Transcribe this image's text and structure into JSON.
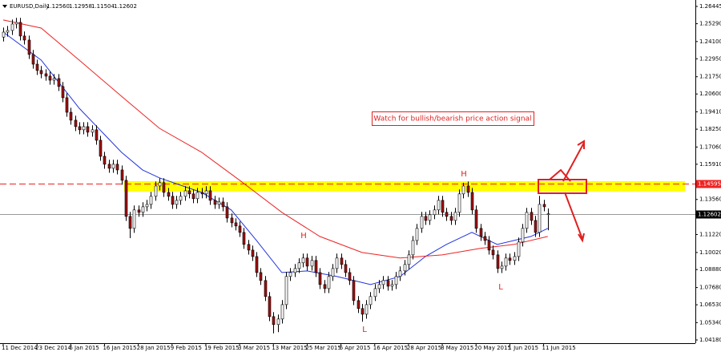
{
  "chart_data": {
    "type": "candlestick",
    "header": {
      "symbol": "EURUSD,Daily",
      "ohlc_labels": [
        "1.12560",
        "1.12958",
        "1.11504",
        "1.12602"
      ]
    },
    "categories": [
      "11 Dec 2014",
      null,
      null,
      null,
      null,
      null,
      null,
      null,
      "23 Dec 2014",
      null,
      null,
      null,
      null,
      null,
      null,
      null,
      "6 Jan 2015",
      null,
      null,
      null,
      null,
      null,
      null,
      null,
      "16 Jan 2015",
      null,
      null,
      null,
      null,
      null,
      null,
      null,
      "28 Jan 2015",
      null,
      null,
      null,
      null,
      null,
      null,
      null,
      "9 Feb 2015",
      null,
      null,
      null,
      null,
      null,
      null,
      null,
      "19 Feb 2015",
      null,
      null,
      null,
      null,
      null,
      null,
      null,
      "3 Mar 2015",
      null,
      null,
      null,
      null,
      null,
      null,
      null,
      "13 Mar 2015",
      null,
      null,
      null,
      null,
      null,
      null,
      null,
      "25 Mar 2015",
      null,
      null,
      null,
      null,
      null,
      null,
      null,
      "6 Apr 2015",
      null,
      null,
      null,
      null,
      null,
      null,
      null,
      "16 Apr 2015",
      null,
      null,
      null,
      null,
      null,
      null,
      null,
      "28 Apr 2015",
      null,
      null,
      null,
      null,
      null,
      null,
      null,
      "8 May 2015",
      null,
      null,
      null,
      null,
      null,
      null,
      null,
      "20 May 2015",
      null,
      null,
      null,
      null,
      null,
      null,
      null,
      "1 Jun 2015",
      null,
      null,
      null,
      null,
      null,
      null,
      null,
      "11 Jun 2015",
      null
    ],
    "candles": [
      [
        1.244,
        1.2503,
        1.241,
        1.2473
      ],
      [
        1.2473,
        1.2514,
        1.2443,
        1.2484
      ],
      [
        1.2484,
        1.2557,
        1.2454,
        1.2527
      ],
      [
        1.2527,
        1.2568,
        1.2497,
        1.2538
      ],
      [
        1.2538,
        1.2568,
        1.2417,
        1.2447
      ],
      [
        1.2447,
        1.2477,
        1.239,
        1.242
      ],
      [
        1.242,
        1.245,
        1.2294,
        1.2324
      ],
      [
        1.2324,
        1.2354,
        1.2229,
        1.2259
      ],
      [
        1.2259,
        1.2289,
        1.2187,
        1.2217
      ],
      [
        1.2217,
        1.2247,
        1.2165,
        1.2195
      ],
      [
        1.2195,
        1.2225,
        1.2149,
        1.2179
      ],
      [
        1.2179,
        1.2209,
        1.2122,
        1.2152
      ],
      [
        1.2152,
        1.2193,
        1.2122,
        1.2163
      ],
      [
        1.2163,
        1.2193,
        1.208,
        1.211
      ],
      [
        1.211,
        1.214,
        1.2005,
        1.2035
      ],
      [
        1.2035,
        1.2065,
        1.1908,
        1.1938
      ],
      [
        1.1938,
        1.1968,
        1.1855,
        1.1885
      ],
      [
        1.1885,
        1.1915,
        1.1812,
        1.1842
      ],
      [
        1.1842,
        1.1872,
        1.1791,
        1.1821
      ],
      [
        1.1821,
        1.1872,
        1.1791,
        1.1842
      ],
      [
        1.1842,
        1.1872,
        1.1775,
        1.1805
      ],
      [
        1.1805,
        1.1851,
        1.1775,
        1.1821
      ],
      [
        1.1821,
        1.1851,
        1.1721,
        1.1751
      ],
      [
        1.1751,
        1.1781,
        1.1614,
        1.1644
      ],
      [
        1.1644,
        1.1674,
        1.1561,
        1.1591
      ],
      [
        1.1591,
        1.1621,
        1.1534,
        1.1564
      ],
      [
        1.1564,
        1.1621,
        1.1534,
        1.1591
      ],
      [
        1.1591,
        1.1621,
        1.1523,
        1.1553
      ],
      [
        1.1553,
        1.1583,
        1.1454,
        1.1484
      ],
      [
        1.1484,
        1.1514,
        1.1213,
        1.1243
      ],
      [
        1.1243,
        1.1273,
        1.1098,
        1.1163
      ],
      [
        1.1163,
        1.1316,
        1.1133,
        1.1286
      ],
      [
        1.1286,
        1.1316,
        1.124,
        1.127
      ],
      [
        1.127,
        1.1337,
        1.124,
        1.1307
      ],
      [
        1.1307,
        1.1353,
        1.1277,
        1.1323
      ],
      [
        1.1323,
        1.1407,
        1.1293,
        1.1377
      ],
      [
        1.1377,
        1.1476,
        1.1347,
        1.1446
      ],
      [
        1.1446,
        1.1498,
        1.1416,
        1.1468
      ],
      [
        1.1468,
        1.1498,
        1.1373,
        1.1403
      ],
      [
        1.1403,
        1.1433,
        1.1347,
        1.1377
      ],
      [
        1.1377,
        1.1407,
        1.1293,
        1.1323
      ],
      [
        1.1323,
        1.138,
        1.1293,
        1.135
      ],
      [
        1.135,
        1.1407,
        1.132,
        1.1377
      ],
      [
        1.1377,
        1.1444,
        1.1347,
        1.1414
      ],
      [
        1.1414,
        1.1444,
        1.1363,
        1.1393
      ],
      [
        1.1393,
        1.1423,
        1.1331,
        1.1361
      ],
      [
        1.1361,
        1.1433,
        1.1331,
        1.1403
      ],
      [
        1.1403,
        1.1433,
        1.1363,
        1.1393
      ],
      [
        1.1393,
        1.1444,
        1.1363,
        1.1414
      ],
      [
        1.1414,
        1.1444,
        1.132,
        1.135
      ],
      [
        1.135,
        1.138,
        1.1293,
        1.1323
      ],
      [
        1.1323,
        1.1369,
        1.1293,
        1.1339
      ],
      [
        1.1339,
        1.1369,
        1.1277,
        1.1307
      ],
      [
        1.1307,
        1.1337,
        1.1202,
        1.1232
      ],
      [
        1.1232,
        1.1262,
        1.117,
        1.12
      ],
      [
        1.12,
        1.123,
        1.1149,
        1.1179
      ],
      [
        1.1179,
        1.1209,
        1.1106,
        1.1136
      ],
      [
        1.1136,
        1.1166,
        1.1026,
        1.1056
      ],
      [
        1.1056,
        1.1086,
        1.0988,
        1.1018
      ],
      [
        1.1018,
        1.1048,
        1.0945,
        1.0975
      ],
      [
        1.0975,
        1.1005,
        1.0838,
        1.0868
      ],
      [
        1.0868,
        1.0898,
        1.0785,
        1.0815
      ],
      [
        1.0815,
        1.0845,
        1.0678,
        1.0708
      ],
      [
        1.0708,
        1.0738,
        1.0544,
        1.0574
      ],
      [
        1.0574,
        1.0604,
        1.0462,
        1.0521
      ],
      [
        1.0521,
        1.0588,
        1.047,
        1.0558
      ],
      [
        1.0558,
        1.0684,
        1.0528,
        1.0654
      ],
      [
        1.0654,
        1.0872,
        1.0624,
        1.0842
      ],
      [
        1.0842,
        1.0898,
        1.0812,
        1.0868
      ],
      [
        1.0868,
        1.0925,
        1.0838,
        1.0895
      ],
      [
        1.0895,
        1.0963,
        1.0865,
        1.0933
      ],
      [
        1.0933,
        1.0995,
        1.0903,
        1.0965
      ],
      [
        1.0965,
        1.0995,
        1.0881,
        1.0911
      ],
      [
        1.0911,
        1.0979,
        1.0881,
        1.0949
      ],
      [
        1.0949,
        1.0979,
        1.0838,
        1.0868
      ],
      [
        1.0868,
        1.0898,
        1.0758,
        1.0788
      ],
      [
        1.0788,
        1.0818,
        1.0731,
        1.0761
      ],
      [
        1.0761,
        1.0872,
        1.0731,
        1.0842
      ],
      [
        1.0842,
        1.0925,
        1.0812,
        1.0895
      ],
      [
        1.0895,
        1.0995,
        1.0865,
        1.0965
      ],
      [
        1.0965,
        1.0995,
        1.0892,
        1.0922
      ],
      [
        1.0922,
        1.0952,
        1.0838,
        1.0868
      ],
      [
        1.0868,
        1.0898,
        1.0785,
        1.0815
      ],
      [
        1.0815,
        1.0845,
        1.0651,
        1.0681
      ],
      [
        1.0681,
        1.0711,
        1.0598,
        1.0628
      ],
      [
        1.0628,
        1.0658,
        1.054,
        1.059
      ],
      [
        1.059,
        1.0684,
        1.056,
        1.0654
      ],
      [
        1.0654,
        1.0738,
        1.0624,
        1.0708
      ],
      [
        1.0708,
        1.0791,
        1.0678,
        1.0761
      ],
      [
        1.0761,
        1.0818,
        1.0731,
        1.0788
      ],
      [
        1.0788,
        1.0845,
        1.0758,
        1.0815
      ],
      [
        1.0815,
        1.0845,
        1.0747,
        1.0777
      ],
      [
        1.0777,
        1.0818,
        1.0747,
        1.0788
      ],
      [
        1.0788,
        1.0872,
        1.0758,
        1.0842
      ],
      [
        1.0842,
        1.0909,
        1.0812,
        1.0879
      ],
      [
        1.0879,
        1.0952,
        1.0849,
        1.0922
      ],
      [
        1.0922,
        1.1016,
        1.0892,
        1.0986
      ],
      [
        1.0986,
        1.1112,
        1.0956,
        1.1082
      ],
      [
        1.1082,
        1.1193,
        1.1052,
        1.1163
      ],
      [
        1.1163,
        1.1273,
        1.1133,
        1.1243
      ],
      [
        1.1243,
        1.1273,
        1.1186,
        1.1216
      ],
      [
        1.1216,
        1.1284,
        1.1186,
        1.1254
      ],
      [
        1.1254,
        1.1316,
        1.1224,
        1.1286
      ],
      [
        1.1286,
        1.138,
        1.1256,
        1.135
      ],
      [
        1.135,
        1.138,
        1.124,
        1.127
      ],
      [
        1.127,
        1.13,
        1.1213,
        1.1243
      ],
      [
        1.1243,
        1.1273,
        1.1186,
        1.1216
      ],
      [
        1.1216,
        1.13,
        1.1186,
        1.127
      ],
      [
        1.127,
        1.1423,
        1.124,
        1.1393
      ],
      [
        1.1393,
        1.1467,
        1.1363,
        1.1446
      ],
      [
        1.1446,
        1.1476,
        1.1373,
        1.1403
      ],
      [
        1.1403,
        1.1433,
        1.1256,
        1.1286
      ],
      [
        1.1286,
        1.1316,
        1.1133,
        1.1163
      ],
      [
        1.1163,
        1.1193,
        1.1079,
        1.1109
      ],
      [
        1.1109,
        1.1139,
        1.1052,
        1.1082
      ],
      [
        1.1082,
        1.1112,
        1.0988,
        1.1018
      ],
      [
        1.1018,
        1.1048,
        1.0956,
        1.0986
      ],
      [
        1.0986,
        1.1016,
        1.0865,
        1.0895
      ],
      [
        1.0895,
        1.0941,
        1.0865,
        1.0911
      ],
      [
        1.0911,
        1.0995,
        1.0881,
        1.0965
      ],
      [
        1.0965,
        1.0995,
        1.0919,
        1.0949
      ],
      [
        1.0949,
        1.1005,
        1.0919,
        1.0975
      ],
      [
        1.0975,
        1.1102,
        1.0945,
        1.1072
      ],
      [
        1.1072,
        1.1193,
        1.1042,
        1.1163
      ],
      [
        1.1163,
        1.13,
        1.1133,
        1.127
      ],
      [
        1.127,
        1.13,
        1.1186,
        1.1216
      ],
      [
        1.1216,
        1.1246,
        1.1106,
        1.1136
      ],
      [
        1.1136,
        1.138,
        1.1106,
        1.1323
      ],
      [
        1.1323,
        1.1353,
        1.1277,
        1.1307
      ],
      [
        1.1256,
        1.12958,
        1.11504,
        1.12602
      ]
    ],
    "bull_color": "#ffffff",
    "bear_color": "#a01010",
    "series": [
      {
        "type": "line",
        "color": "#2233dd",
        "x": [
          0,
          9,
          18,
          28,
          33,
          37,
          47,
          54,
          60,
          66,
          72,
          79,
          87,
          94,
          100,
          105,
          111,
          117,
          121,
          125,
          129
        ],
        "values": [
          1.2473,
          1.2286,
          1.1965,
          1.1671,
          1.1553,
          1.15,
          1.1403,
          1.1286,
          1.1082,
          1.0868,
          1.0879,
          1.0842,
          1.0788,
          1.0842,
          1.0975,
          1.1056,
          1.1136,
          1.1056,
          1.1082,
          1.1109,
          1.1163
        ]
      },
      {
        "type": "line",
        "color": "#ee2222",
        "x": [
          0,
          9,
          18,
          28,
          37,
          47,
          56,
          66,
          75,
          85,
          94,
          104,
          113,
          121,
          129
        ],
        "values": [
          1.2554,
          1.25,
          1.2286,
          1.2045,
          1.1831,
          1.1671,
          1.1484,
          1.127,
          1.1109,
          1.1002,
          1.0965,
          1.0986,
          1.1029,
          1.1056,
          1.1109
        ]
      }
    ],
    "ylim": [
      1.03966,
      1.26873
    ],
    "yticks": [
      1.26445,
      {
        "value": 1.2529,
        "label": "1.25290"
      },
      {
        "value": 1.241,
        "label": "1.24100"
      },
      {
        "value": 1.2295,
        "label": "1.22950"
      },
      {
        "value": 1.2175,
        "label": "1.21750"
      },
      {
        "value": 1.206,
        "label": "1.20600"
      },
      {
        "value": 1.1941,
        "label": "1.19410"
      },
      {
        "value": 1.1825,
        "label": "1.18250"
      },
      {
        "value": 1.1706,
        "label": "1.17060"
      },
      {
        "value": 1.1591,
        "label": "1.15910"
      },
      {
        "value": 1.1356,
        "label": "1.13560"
      },
      {
        "value": 1.1122,
        "label": "1.11220"
      },
      {
        "value": 1.1002,
        "label": "1.10020"
      },
      {
        "value": 1.0888,
        "label": "1.08880"
      },
      {
        "value": 1.0768,
        "label": "1.07680"
      },
      {
        "value": 1.0653,
        "label": "1.06530"
      },
      {
        "value": 1.0534,
        "label": "1.05340"
      },
      {
        "value": 1.0418,
        "label": "1.04180"
      }
    ],
    "zone": {
      "color": "#ffff00",
      "range": [
        1.1409,
        1.1478
      ]
    },
    "levels": [
      {
        "value": 1.14595,
        "color": "#ee2222",
        "dashed": true
      },
      {
        "value": 1.12602,
        "color": "#999999",
        "dashed": false
      }
    ],
    "annotation": "Watch for bullish/bearish price action signal",
    "pattern_labels": [
      "H",
      "H",
      "L",
      "L"
    ]
  }
}
